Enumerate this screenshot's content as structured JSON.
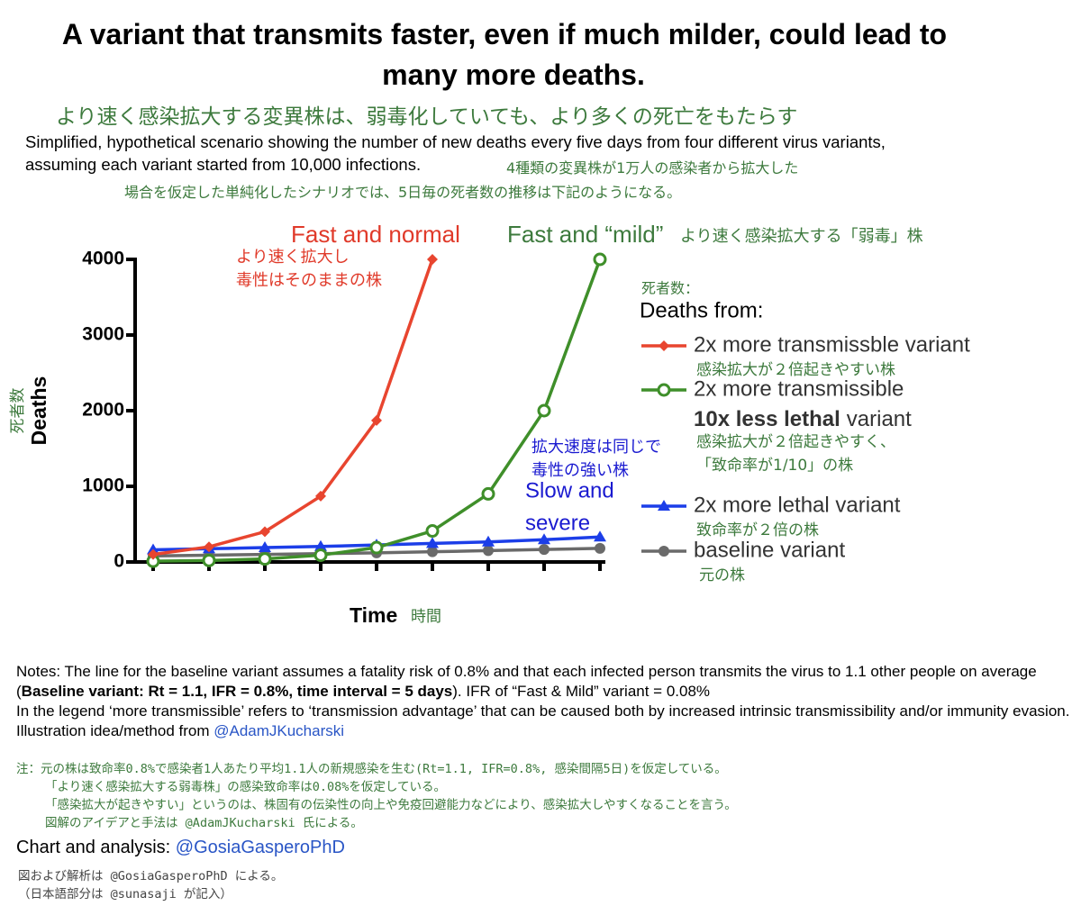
{
  "title": [
    "A variant that transmits faster, even if much milder, could lead to",
    "many more deaths."
  ],
  "title_ja": "より速く感染拡大する変異株は、弱毒化していても、より多くの死亡をもたらす",
  "subtitle": [
    "Simplified, hypothetical scenario showing the number of new deaths every five days from four different virus variants,",
    "assuming each variant started from 10,000 infections."
  ],
  "subtitle_ja": [
    "4種類の変異株が1万人の感染者から拡大した",
    "場合を仮定した単純化したシナリオでは、5日毎の死者数の推移は下記のようになる。"
  ],
  "chart_data": {
    "type": "line",
    "y_label": "Deaths",
    "y_label_ja": "死者数",
    "x_label": "Time",
    "x_label_ja": "時間",
    "categories": [
      null,
      null,
      null,
      null,
      null,
      null,
      null,
      null,
      null
    ],
    "ylim": [
      0,
      4000
    ],
    "yticks": [
      0,
      1000,
      2000,
      3000,
      4000
    ],
    "legend_title_ja": "死者数：",
    "legend_title": "Deaths from:",
    "series": [
      {
        "name": "2x more transmissble variant",
        "ja": [
          "感染拡大が２倍起きやすい株"
        ],
        "color": "#e8452f",
        "marker": "diamond",
        "values": [
          100,
          200,
          400,
          870,
          1870,
          4000,
          null,
          null,
          null
        ]
      },
      {
        "name": "2x more transmissible",
        "name_extra": [
          {
            "text": "10x less lethal",
            "bold": true
          },
          {
            "text": "variant"
          }
        ],
        "ja": [
          "感染拡大が２倍起きやすく、",
          "「致命率が1/10」の株"
        ],
        "color": "#3f8f2a",
        "marker": "open-circle",
        "values": [
          10,
          20,
          40,
          90,
          190,
          410,
          900,
          2000,
          4000
        ]
      },
      {
        "name": "2x more lethal variant",
        "ja": [
          "致命率が２倍の株"
        ],
        "color": "#1c3ee8",
        "marker": "triangle",
        "values": [
          160,
          175,
          190,
          205,
          225,
          245,
          265,
          295,
          330
        ]
      },
      {
        "name": "baseline variant",
        "ja": [
          "元の株"
        ],
        "color": "#6a6a6a",
        "marker": "circle",
        "values": [
          80,
          90,
          100,
          110,
          120,
          135,
          150,
          165,
          180
        ]
      }
    ],
    "annotations": [
      {
        "text": "Fast and normal",
        "color": "#e03a2a",
        "size": 26
      },
      {
        "text": "より速く拡大し",
        "color": "#e03a2a",
        "size": 18
      },
      {
        "text": "毒性はそのままの株",
        "color": "#e03a2a",
        "size": 18
      },
      {
        "text": "Fast and “mild”",
        "color": "#3d7a3d",
        "size": 26
      },
      {
        "text": "より速く感染拡大する「弱毒」株",
        "color": "#3d7a3d",
        "size": 18
      },
      {
        "text": "拡大速度は同じで",
        "color": "#1a1ad0",
        "size": 18
      },
      {
        "text": "毒性の強い株",
        "color": "#1a1ad0",
        "size": 18
      },
      {
        "text": "Slow and",
        "color": "#1a1ad0",
        "size": 24
      },
      {
        "text": "severe",
        "color": "#1a1ad0",
        "size": 24
      }
    ]
  },
  "notes": {
    "en": [
      {
        "text": "Notes: The line for the baseline variant assumes a fatality risk of 0.8% and that each infected person transmits the virus to 1.1 other people on average ("
      },
      {
        "text": "Baseline variant: Rt = 1.1, IFR = 0.8%, time interval = 5 days",
        "bold": true
      },
      {
        "text": "). IFR of “Fast & Mild” variant = 0.08%"
      },
      {
        "text": "In the legend ‘more transmissible’ refers to ‘transmission advantage’ that can be caused both by increased intrinsic transmissibility and/or immunity evasion. Illustration idea/method from ",
        "newline": true
      },
      {
        "text": "@AdamJKucharski",
        "link": true
      }
    ],
    "ja": [
      "注：元の株は致命率0.8%で感染者1人あたり平均1.1人の新規感染を生む(Rt=1.1, IFR=0.8%, 感染間隔5日)を仮定している。",
      "「より速く感染拡大する弱毒株」の感染致命率は0.08%を仮定している。",
      "「感染拡大が起きやすい」というのは、株固有の伝染性の向上や免疫回避能力などにより、感染拡大しやすくなることを言う。",
      "図解のアイデアと手法は @AdamJKucharski 氏による。"
    ]
  },
  "credit": {
    "label": "Chart and analysis:",
    "handle": "@GosiaGasperoPhD",
    "ja": [
      "図および解析は @GosiaGasperoPhD による。",
      "（日本語部分は @sunasaji が記入）"
    ]
  }
}
